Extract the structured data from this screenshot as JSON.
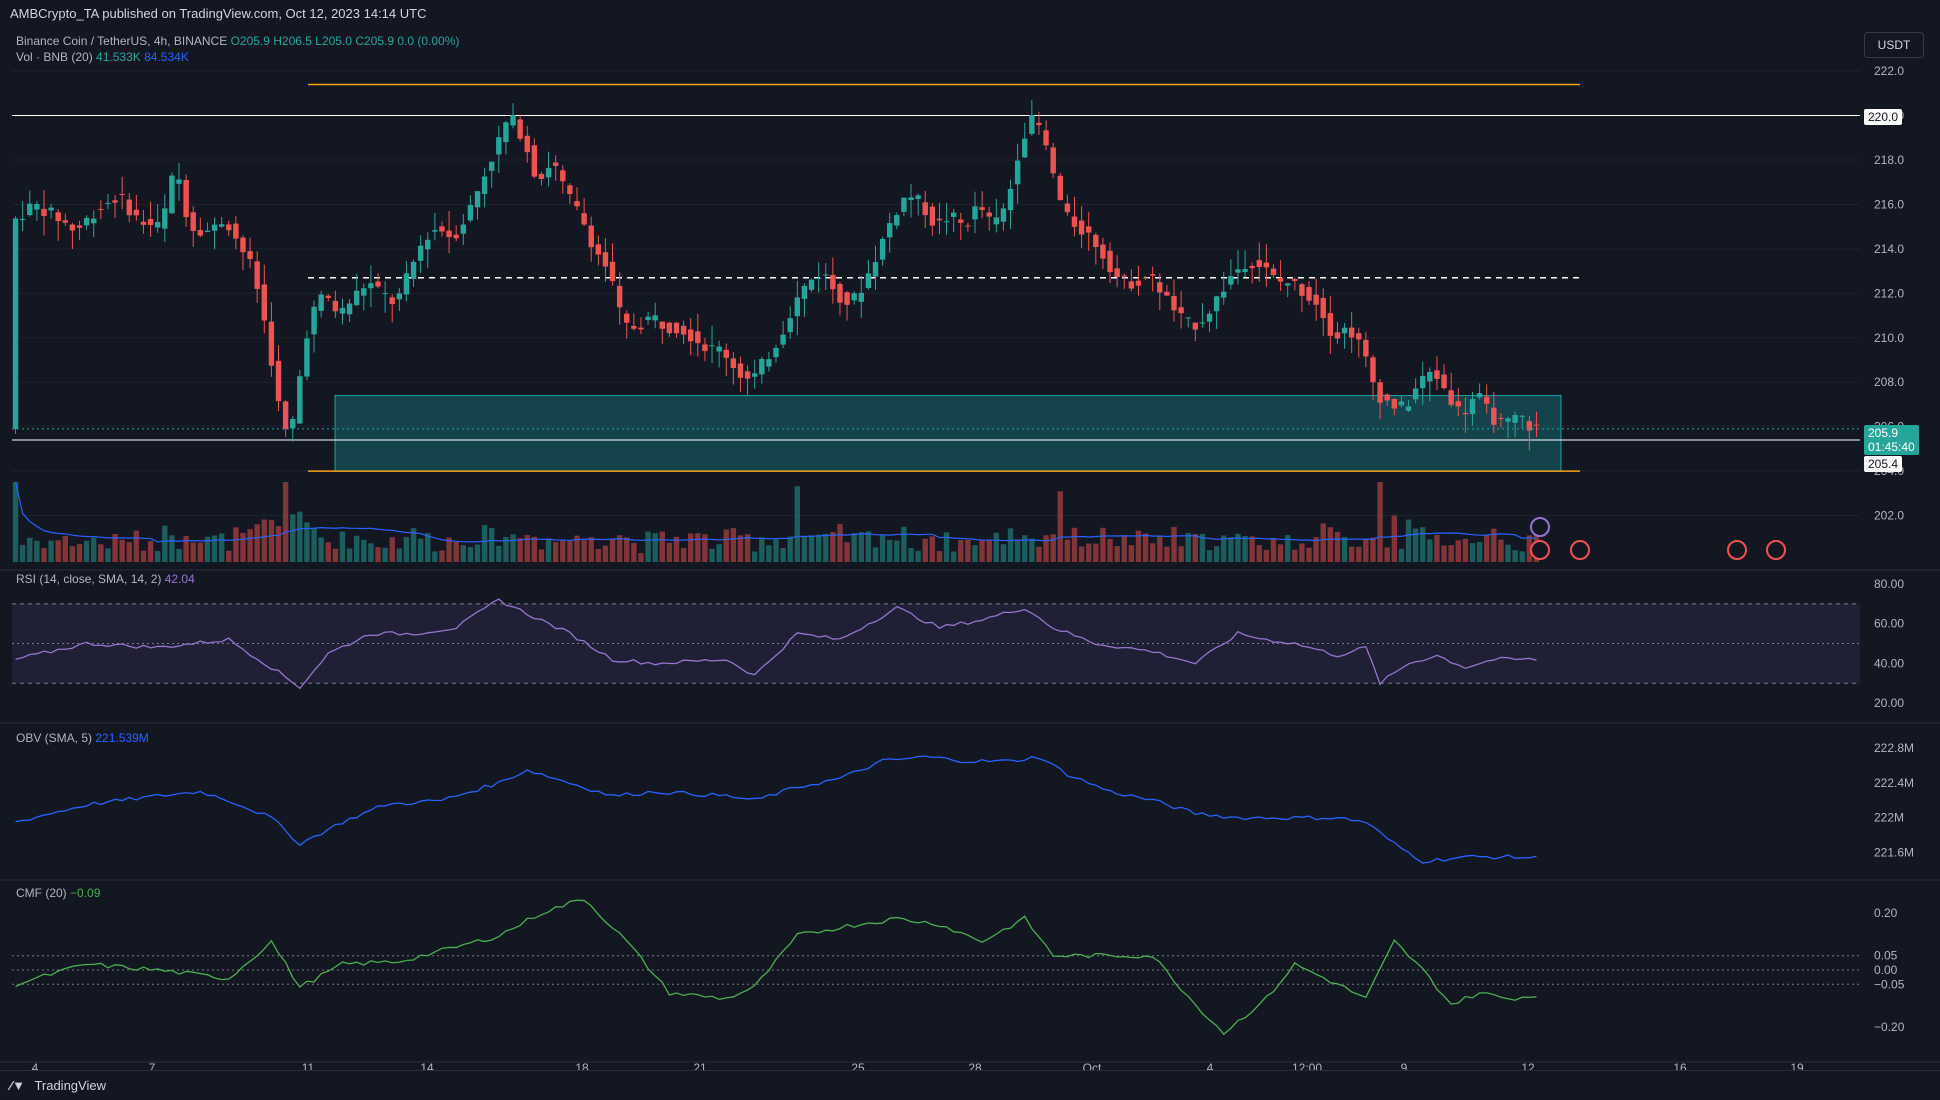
{
  "header": {
    "published": "AMBCrypto_TA published on TradingView.com, Oct 12, 2023 14:14 UTC"
  },
  "legend": {
    "symbol": "Binance Coin / TetherUS, 4h, BINANCE",
    "ohlc": "O205.9 H206.5 L205.0 C205.9 0.0 (0.00%)",
    "vol_label": "Vol · BNB (20)",
    "vol_value": "41.533K",
    "vol_ma": "84.534K",
    "rsi_label": "RSI (14, close, SMA, 14, 2)",
    "rsi_value": "42.04",
    "obv_label": "OBV (SMA, 5)",
    "obv_value": "221.539M",
    "cmf_label": "CMF (20)",
    "cmf_value": "−0.09"
  },
  "currency": "USDT",
  "price_tags": {
    "current": "205.9",
    "countdown": "01:45:40",
    "level_205": "205.4",
    "level_220": "220.0"
  },
  "footer": {
    "brand": "TradingView"
  },
  "colors": {
    "bg": "#131722",
    "up": "#26a69a",
    "down": "#ef5350",
    "grid": "#1e222d",
    "orange": "#f7a21b",
    "zone": "#1aa3a3",
    "rsi": "#9575cd",
    "obv": "#2962ff",
    "cmf": "#4caf50"
  },
  "chart_data": [
    {
      "type": "candlestick",
      "title": "Binance Coin / TetherUS, 4h, BINANCE",
      "ylim": [
        200,
        222.5
      ],
      "y_ticks": [
        "222.0",
        "220.0",
        "218.0",
        "216.0",
        "214.0",
        "212.0",
        "210.0",
        "208.0",
        "206.0",
        "204.0",
        "202.0"
      ],
      "x_ticks": [
        "4",
        "7",
        "11",
        "14",
        "18",
        "21",
        "25",
        "28",
        "Oct",
        "4",
        "12:00",
        "9",
        "12",
        "16",
        "19"
      ],
      "price_path": [
        [
          0,
          215.2
        ],
        [
          3,
          216.0
        ],
        [
          6,
          215.5
        ],
        [
          9,
          214.8
        ],
        [
          12,
          215.8
        ],
        [
          15,
          216.4
        ],
        [
          18,
          215.2
        ],
        [
          21,
          215.0
        ],
        [
          23,
          217.8
        ],
        [
          25,
          215.0
        ],
        [
          28,
          214.8
        ],
        [
          30,
          215.4
        ],
        [
          32,
          214.2
        ],
        [
          34,
          213.0
        ],
        [
          35,
          211.5
        ],
        [
          36,
          210.0
        ],
        [
          37,
          208.0
        ],
        [
          38,
          206.0
        ],
        [
          39,
          205.5
        ],
        [
          40,
          207.0
        ],
        [
          41,
          209.5
        ],
        [
          42,
          211.0
        ],
        [
          44,
          212.0
        ],
        [
          46,
          211.0
        ],
        [
          48,
          211.8
        ],
        [
          50,
          212.5
        ],
        [
          52,
          212.0
        ],
        [
          54,
          211.5
        ],
        [
          56,
          213.0
        ],
        [
          58,
          214.5
        ],
        [
          60,
          215.0
        ],
        [
          62,
          214.5
        ],
        [
          64,
          215.5
        ],
        [
          66,
          217.0
        ],
        [
          68,
          218.5
        ],
        [
          70,
          220.0
        ],
        [
          72,
          219.0
        ],
        [
          74,
          217.0
        ],
        [
          76,
          218.0
        ],
        [
          78,
          216.5
        ],
        [
          80,
          215.5
        ],
        [
          82,
          214.0
        ],
        [
          84,
          213.0
        ],
        [
          86,
          210.5
        ],
        [
          88,
          210.5
        ],
        [
          90,
          211.0
        ],
        [
          92,
          210.5
        ],
        [
          94,
          210.5
        ],
        [
          96,
          210.0
        ],
        [
          98,
          209.5
        ],
        [
          100,
          209.5
        ],
        [
          102,
          208.5
        ],
        [
          104,
          208.0
        ],
        [
          106,
          209.0
        ],
        [
          108,
          210.0
        ],
        [
          110,
          211.5
        ],
        [
          112,
          212.5
        ],
        [
          114,
          213.0
        ],
        [
          116,
          212.0
        ],
        [
          118,
          211.5
        ],
        [
          120,
          212.5
        ],
        [
          122,
          214.0
        ],
        [
          124,
          215.5
        ],
        [
          126,
          216.5
        ],
        [
          128,
          216.0
        ],
        [
          130,
          215.0
        ],
        [
          132,
          215.5
        ],
        [
          134,
          215.0
        ],
        [
          136,
          216.0
        ],
        [
          138,
          215.0
        ],
        [
          140,
          216.0
        ],
        [
          142,
          219.0
        ],
        [
          144,
          220.0
        ],
        [
          146,
          218.0
        ],
        [
          148,
          215.5
        ],
        [
          150,
          215.0
        ],
        [
          152,
          214.5
        ],
        [
          154,
          213.5
        ],
        [
          156,
          212.5
        ],
        [
          158,
          212.5
        ],
        [
          160,
          212.8
        ],
        [
          162,
          212.0
        ],
        [
          164,
          211.0
        ],
        [
          166,
          210.5
        ],
        [
          168,
          211.0
        ],
        [
          170,
          212.0
        ],
        [
          172,
          213.0
        ],
        [
          174,
          213.5
        ],
        [
          176,
          213.2
        ],
        [
          178,
          212.5
        ],
        [
          180,
          212.5
        ],
        [
          182,
          212.0
        ],
        [
          184,
          211.5
        ],
        [
          186,
          210.0
        ],
        [
          188,
          210.5
        ],
        [
          190,
          209.5
        ],
        [
          192,
          207.5
        ],
        [
          194,
          207.0
        ],
        [
          196,
          206.8
        ],
        [
          198,
          208.0
        ],
        [
          200,
          208.5
        ],
        [
          202,
          207.5
        ],
        [
          204,
          206.5
        ],
        [
          206,
          207.5
        ],
        [
          208,
          206.5
        ],
        [
          210,
          206.0
        ],
        [
          212,
          206.5
        ],
        [
          214,
          205.9
        ]
      ],
      "levels": {
        "orange_top": 221.4,
        "white_220": 220.0,
        "dashed_mid": 212.7,
        "zone_top": 207.4,
        "zone_line": 205.4,
        "orange_bottom": 204.0
      },
      "current_price": 205.9
    },
    {
      "type": "line",
      "title": "RSI (14, close, SMA, 14, 2)",
      "ylim": [
        15,
        82
      ],
      "y_ticks": [
        "80.00",
        "60.00",
        "40.00",
        "20.00"
      ],
      "band": [
        30,
        70
      ],
      "values_path": [
        [
          0,
          42
        ],
        [
          10,
          50
        ],
        [
          20,
          48
        ],
        [
          30,
          52
        ],
        [
          36,
          38
        ],
        [
          40,
          28
        ],
        [
          44,
          45
        ],
        [
          50,
          55
        ],
        [
          56,
          55
        ],
        [
          62,
          58
        ],
        [
          68,
          72
        ],
        [
          72,
          65
        ],
        [
          78,
          55
        ],
        [
          84,
          42
        ],
        [
          90,
          40
        ],
        [
          100,
          42
        ],
        [
          104,
          34
        ],
        [
          110,
          55
        ],
        [
          116,
          52
        ],
        [
          124,
          68
        ],
        [
          130,
          58
        ],
        [
          136,
          62
        ],
        [
          142,
          68
        ],
        [
          146,
          58
        ],
        [
          152,
          50
        ],
        [
          160,
          46
        ],
        [
          166,
          40
        ],
        [
          172,
          55
        ],
        [
          176,
          52
        ],
        [
          180,
          50
        ],
        [
          186,
          44
        ],
        [
          190,
          48
        ],
        [
          192,
          30
        ],
        [
          196,
          40
        ],
        [
          200,
          44
        ],
        [
          204,
          38
        ],
        [
          208,
          42
        ],
        [
          214,
          42
        ]
      ]
    },
    {
      "type": "line",
      "title": "OBV (SMA, 5)",
      "ylim": [
        221.4,
        222.95
      ],
      "y_ticks": [
        "222.8M",
        "222.4M",
        "222M",
        "221.6M"
      ],
      "values_path": [
        [
          0,
          221.95
        ],
        [
          10,
          222.15
        ],
        [
          20,
          222.25
        ],
        [
          26,
          222.3
        ],
        [
          30,
          222.2
        ],
        [
          36,
          222.0
        ],
        [
          40,
          221.7
        ],
        [
          46,
          221.95
        ],
        [
          52,
          222.15
        ],
        [
          60,
          222.2
        ],
        [
          68,
          222.4
        ],
        [
          72,
          222.55
        ],
        [
          76,
          222.45
        ],
        [
          84,
          222.25
        ],
        [
          90,
          222.3
        ],
        [
          100,
          222.25
        ],
        [
          104,
          222.2
        ],
        [
          110,
          222.35
        ],
        [
          116,
          222.45
        ],
        [
          122,
          222.65
        ],
        [
          128,
          222.7
        ],
        [
          134,
          222.65
        ],
        [
          140,
          222.65
        ],
        [
          144,
          222.7
        ],
        [
          148,
          222.5
        ],
        [
          154,
          222.3
        ],
        [
          160,
          222.2
        ],
        [
          166,
          222.05
        ],
        [
          172,
          222.0
        ],
        [
          180,
          222.0
        ],
        [
          186,
          222.0
        ],
        [
          190,
          221.95
        ],
        [
          194,
          221.7
        ],
        [
          198,
          221.5
        ],
        [
          204,
          221.55
        ],
        [
          210,
          221.55
        ],
        [
          214,
          221.54
        ]
      ]
    },
    {
      "type": "line",
      "title": "CMF (20)",
      "ylim": [
        -0.28,
        0.28
      ],
      "y_ticks": [
        "0.20",
        "0.05",
        "0.00",
        "−0.05",
        "−0.20"
      ],
      "bands": [
        0.05,
        0.0,
        -0.05
      ],
      "values_path": [
        [
          0,
          -0.05
        ],
        [
          10,
          0.02
        ],
        [
          20,
          0.0
        ],
        [
          30,
          -0.03
        ],
        [
          36,
          0.1
        ],
        [
          40,
          -0.06
        ],
        [
          46,
          0.02
        ],
        [
          54,
          0.03
        ],
        [
          62,
          0.08
        ],
        [
          68,
          0.12
        ],
        [
          74,
          0.2
        ],
        [
          80,
          0.25
        ],
        [
          86,
          0.1
        ],
        [
          92,
          -0.08
        ],
        [
          100,
          -0.1
        ],
        [
          104,
          -0.06
        ],
        [
          110,
          0.12
        ],
        [
          116,
          0.15
        ],
        [
          124,
          0.18
        ],
        [
          130,
          0.16
        ],
        [
          136,
          0.1
        ],
        [
          142,
          0.18
        ],
        [
          146,
          0.05
        ],
        [
          152,
          0.05
        ],
        [
          160,
          0.05
        ],
        [
          166,
          -0.12
        ],
        [
          170,
          -0.22
        ],
        [
          176,
          -0.1
        ],
        [
          180,
          0.02
        ],
        [
          186,
          -0.05
        ],
        [
          190,
          -0.1
        ],
        [
          194,
          0.1
        ],
        [
          198,
          0.0
        ],
        [
          202,
          -0.12
        ],
        [
          206,
          -0.08
        ],
        [
          210,
          -0.1
        ],
        [
          214,
          -0.09
        ]
      ]
    }
  ]
}
